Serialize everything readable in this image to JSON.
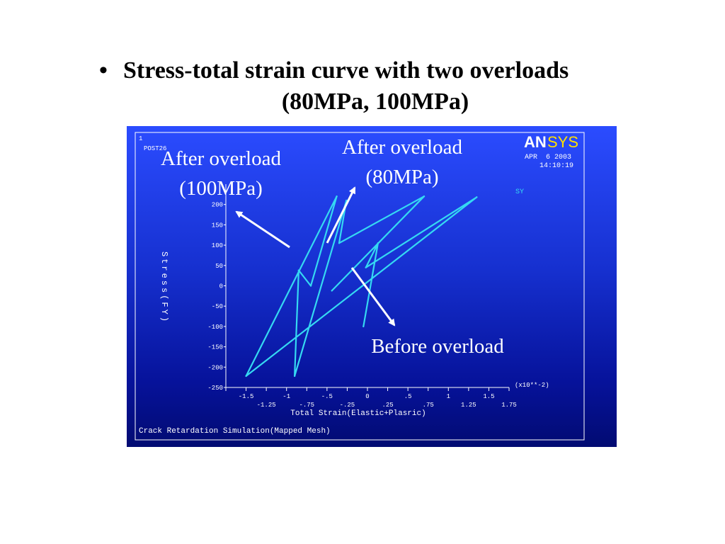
{
  "slide": {
    "bullet": "•",
    "title_line1": "Stress-total strain curve with two overloads",
    "title_line2": "(80MPa, 100MPa)"
  },
  "ansys": {
    "window_number": "1",
    "post_label": "POST26",
    "logo_part1": "AN",
    "logo_part2": "SYS",
    "date": "APR  6 2003",
    "time": "14:10:19",
    "footer": "Crack Retardation Simulation(Mapped Mesh)"
  },
  "colors": {
    "curve": "#35d9f2",
    "arrow": "#ffffff",
    "panel_top": "#2b4cff",
    "panel_bottom": "#020b72",
    "logo_yellow": "#ffe000"
  },
  "annotations": {
    "overload100_line1": "After overload",
    "overload100_line2": "(100MPa)",
    "overload80_line1": "After overload",
    "overload80_line2": "(80MPa)",
    "before": "Before overload"
  },
  "chart_data": {
    "type": "line",
    "title": "",
    "xlabel": "Total Strain(Elastic+Plasric)",
    "ylabel": "Stress(FY)",
    "x_multiplier": "(x10**-2)",
    "legend": [
      {
        "label": "SY",
        "position": "top-right"
      }
    ],
    "xlim": [
      -1.75,
      1.75
    ],
    "ylim": [
      -250,
      250
    ],
    "x_ticks": [
      -1.75,
      -1.5,
      -1.25,
      -1,
      -0.75,
      -0.5,
      -0.25,
      0,
      0.25,
      0.5,
      0.75,
      1,
      1.25,
      1.5,
      1.75
    ],
    "x_tick_labels_upper": [
      {
        "v": -1.5,
        "label": "-1.5"
      },
      {
        "v": -1,
        "label": "-1"
      },
      {
        "v": -0.5,
        "label": "-.5"
      },
      {
        "v": 0,
        "label": "0"
      },
      {
        "v": 0.5,
        "label": ".5"
      },
      {
        "v": 1,
        "label": "1"
      },
      {
        "v": 1.5,
        "label": "1.5"
      }
    ],
    "x_tick_labels_lower": [
      {
        "v": -1.25,
        "label": "-1.25"
      },
      {
        "v": -0.75,
        "label": "-.75"
      },
      {
        "v": -0.25,
        "label": "-.25"
      },
      {
        "v": 0.25,
        "label": ".25"
      },
      {
        "v": 0.75,
        "label": ".75"
      },
      {
        "v": 1.25,
        "label": "1.25"
      },
      {
        "v": 1.75,
        "label": "1.75"
      }
    ],
    "y_ticks": [
      {
        "v": 200,
        "label": "200"
      },
      {
        "v": 150,
        "label": "150"
      },
      {
        "v": 100,
        "label": "100"
      },
      {
        "v": 50,
        "label": "50"
      },
      {
        "v": 0,
        "label": "0"
      },
      {
        "v": -50,
        "label": "-50"
      },
      {
        "v": -100,
        "label": "-100"
      },
      {
        "v": -150,
        "label": "-150"
      },
      {
        "v": -200,
        "label": "-200"
      },
      {
        "v": -250,
        "label": "-250"
      }
    ],
    "series": [
      {
        "points": [
          [
            -0.05,
            -100
          ],
          [
            0.13,
            105
          ],
          [
            -0.02,
            45
          ],
          [
            1.35,
            218
          ],
          [
            -1.5,
            -222
          ],
          [
            -0.38,
            220
          ],
          [
            -0.7,
            0
          ],
          [
            -0.85,
            38
          ],
          [
            -0.9,
            -222
          ],
          [
            -0.26,
            210
          ],
          [
            -0.35,
            105
          ],
          [
            0.7,
            220
          ],
          [
            -0.44,
            -12
          ]
        ]
      }
    ]
  }
}
